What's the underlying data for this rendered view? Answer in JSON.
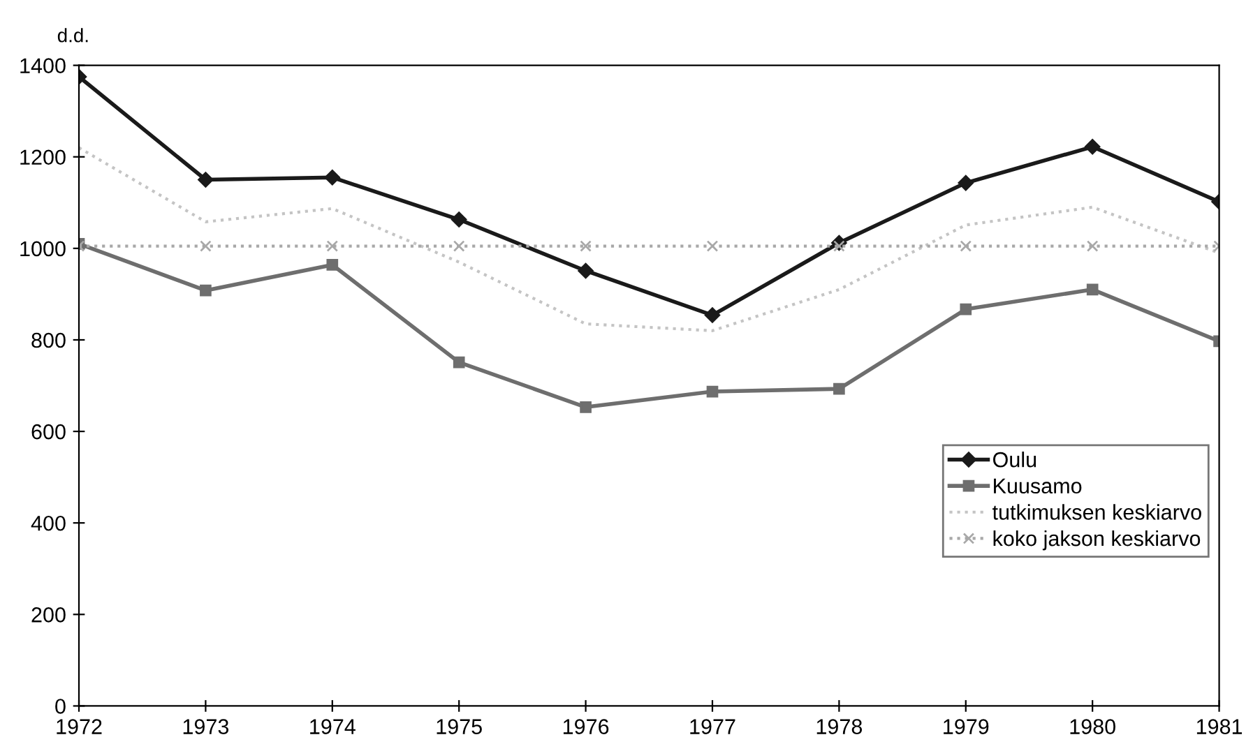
{
  "chart_data": {
    "type": "line",
    "ylabel": "d.d.",
    "categories": [
      "1972",
      "1973",
      "1974",
      "1975",
      "1976",
      "1977",
      "1978",
      "1979",
      "1980",
      "1981"
    ],
    "series": [
      {
        "name": "Oulu",
        "color": "#1a1a1a",
        "marker": "diamond",
        "line_style": "solid",
        "values": [
          1375,
          1150,
          1155,
          1063,
          951,
          854,
          1012,
          1143,
          1222,
          1102
        ]
      },
      {
        "name": "Kuusamo",
        "color": "#6e6e6e",
        "marker": "square",
        "line_style": "solid",
        "values": [
          1010,
          908,
          964,
          751,
          653,
          687,
          693,
          867,
          910,
          797
        ]
      },
      {
        "name": "tutkimuksen keskiarvo",
        "color": "#c4c4c4",
        "marker": "none",
        "line_style": "dotted",
        "values": [
          1220,
          1058,
          1087,
          970,
          835,
          820,
          910,
          1051,
          1090,
          990
        ]
      },
      {
        "name": "koko jakson keskiarvo",
        "color": "#a8a8a8",
        "marker": "cross",
        "line_style": "dotted",
        "values": [
          1005,
          1005,
          1005,
          1005,
          1005,
          1005,
          1005,
          1005,
          1005,
          1005
        ]
      }
    ],
    "ylim": [
      0,
      1400
    ],
    "yticks": [
      0,
      200,
      400,
      600,
      800,
      1000,
      1200,
      1400
    ],
    "grid": false,
    "legend": "right"
  }
}
